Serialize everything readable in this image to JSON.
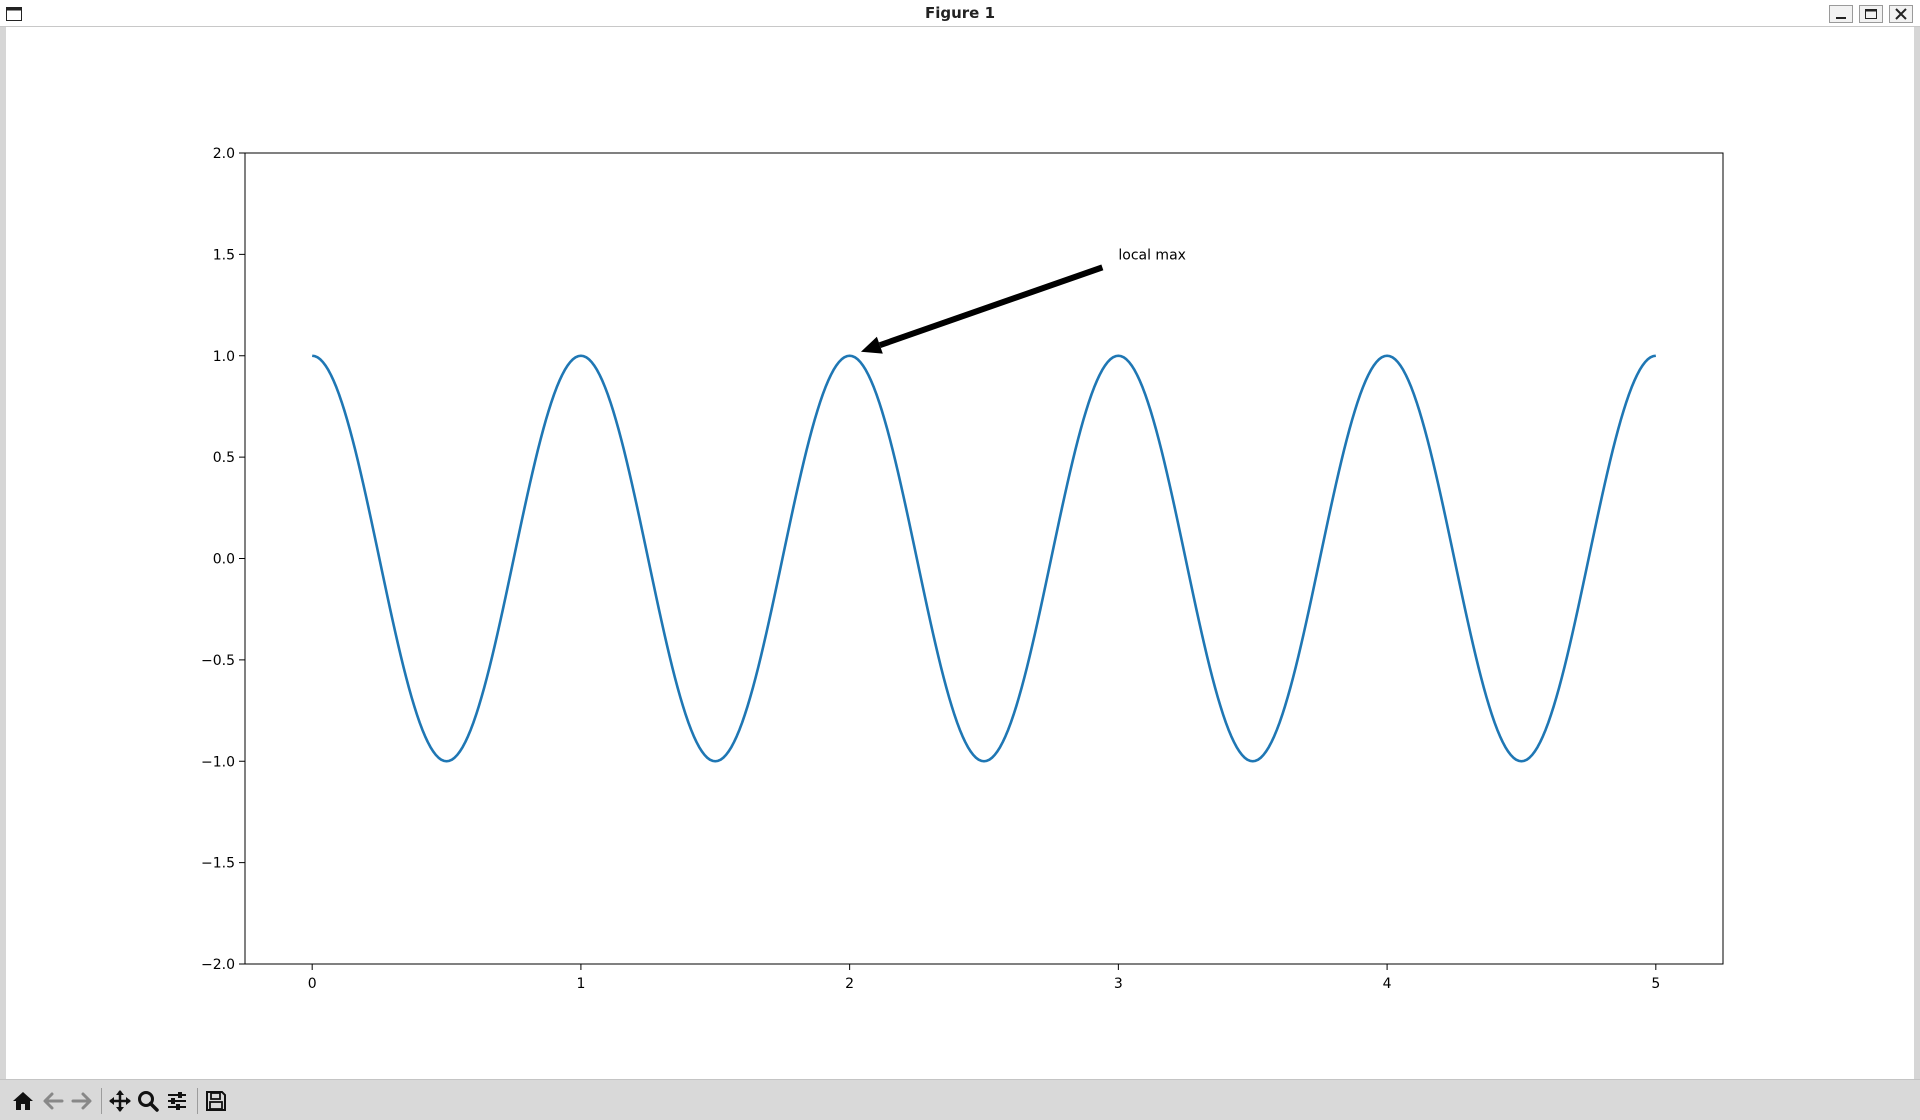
{
  "window": {
    "title": "Figure 1"
  },
  "toolbar": {
    "tools": [
      {
        "name": "home-icon"
      },
      {
        "name": "back-icon"
      },
      {
        "name": "forward-icon"
      },
      {
        "name": "pan-icon"
      },
      {
        "name": "zoom-icon"
      },
      {
        "name": "configure-subplots-icon"
      },
      {
        "name": "save-icon"
      }
    ]
  },
  "chart_data": {
    "type": "line",
    "title": "",
    "xlabel": "",
    "ylabel": "",
    "xlim": [
      -0.25,
      5.25
    ],
    "ylim": [
      -2.0,
      2.0
    ],
    "x_ticks": [
      0,
      1,
      2,
      3,
      4,
      5
    ],
    "x_tick_labels": [
      "0",
      "1",
      "2",
      "3",
      "4",
      "5"
    ],
    "y_ticks": [
      -2.0,
      -1.5,
      -1.0,
      -0.5,
      0.0,
      0.5,
      1.0,
      1.5,
      2.0
    ],
    "y_tick_labels": [
      "−2.0",
      "−1.5",
      "−1.0",
      "−0.5",
      "0.0",
      "0.5",
      "1.0",
      "1.5",
      "2.0"
    ],
    "grid": false,
    "series": [
      {
        "color": "#1f77b4",
        "x_range": [
          0.0,
          5.0
        ],
        "step": 0.01,
        "function": "cos(2*pi*x)"
      }
    ],
    "annotations": [
      {
        "text": "local max",
        "xy": [
          2.0,
          1.0
        ],
        "xytext": [
          3.0,
          1.5
        ],
        "arrow_color": "#000000"
      }
    ]
  }
}
